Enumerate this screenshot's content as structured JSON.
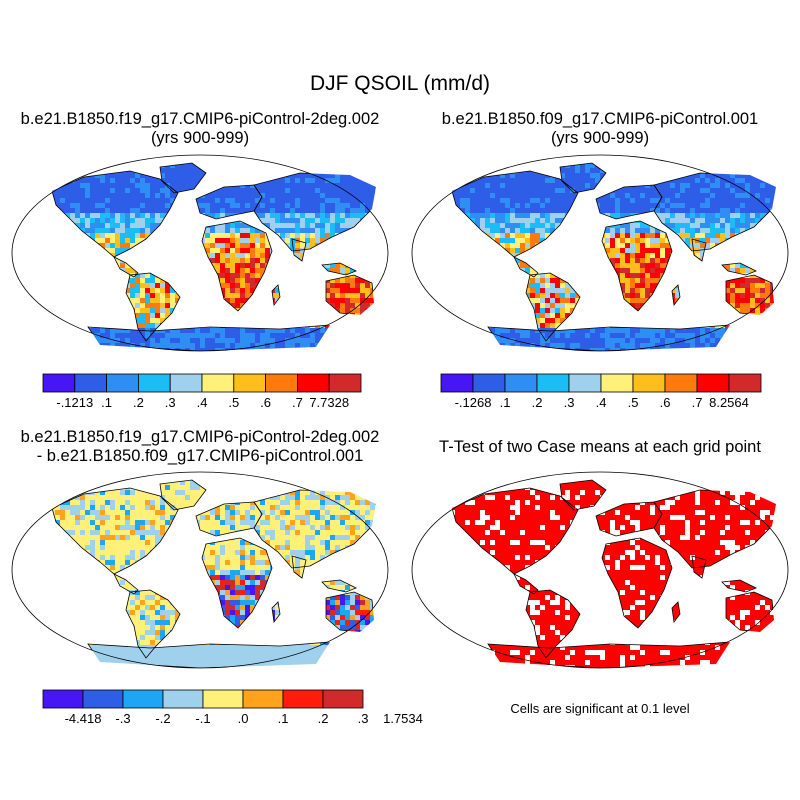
{
  "title": "DJF QSOIL (mm/d)",
  "colors": {
    "case_scale": [
      "#4716f4",
      "#2e5de8",
      "#2e8ef3",
      "#1cbcf6",
      "#9fd0ec",
      "#fff07a",
      "#ffbe1c",
      "#ff7a0c",
      "#ff0000",
      "#d22a2a"
    ],
    "diff_scale": [
      "#4716f4",
      "#2e5de8",
      "#1ea6f4",
      "#9fd0ec",
      "#fff07a",
      "#ffa21c",
      "#ff1c0c",
      "#d22a2a"
    ],
    "significance": "#ff0000",
    "land_outline": "#000000"
  },
  "panels": [
    {
      "id": "case1",
      "title_line1": "b.e21.B1850.f19_g17.CMIP6-piControl-2deg.002",
      "title_line2": "(yrs 900-999)",
      "colorbar_labels": [
        "-.1213",
        ".1",
        ".2",
        ".3",
        ".4",
        ".5",
        ".6",
        ".7",
        "7.7328"
      ],
      "dominant_regions": {
        "northern_high_latitudes": "low",
        "africa_south": "high",
        "australia": "high",
        "amazon": "high"
      }
    },
    {
      "id": "case2",
      "title_line1": "b.e21.B1850.f09_g17.CMIP6-piControl.001",
      "title_line2": "(yrs 900-999)",
      "colorbar_labels": [
        "-.1268",
        ".1",
        ".2",
        ".3",
        ".4",
        ".5",
        ".6",
        ".7",
        "8.2564"
      ],
      "dominant_regions": {
        "northern_high_latitudes": "low",
        "africa_south": "high",
        "australia": "high",
        "amazon": "high"
      }
    },
    {
      "id": "diff",
      "title_line1": "b.e21.B1850.f19_g17.CMIP6-piControl-2deg.002",
      "title_line2": "- b.e21.B1850.f09_g17.CMIP6-piControl.001",
      "colorbar_labels": [
        "-4.418",
        "-.3",
        "-.2",
        "-.1",
        ".0",
        ".1",
        ".2",
        ".3",
        "1.7534"
      ]
    },
    {
      "id": "ttest",
      "title_line1": "T-Test of two Case means at each grid point",
      "title_line2": "",
      "note": "Cells are significant at 0.1 level"
    }
  ],
  "chart_data": [
    {
      "type": "heatmap",
      "title": "b.e21.B1850.f19_g17.CMIP6-piControl-2deg.002 (yrs 900-999)",
      "projection": "global map",
      "colorbar_boundaries": [
        -0.1213,
        0.1,
        0.2,
        0.3,
        0.4,
        0.5,
        0.6,
        0.7,
        7.7328
      ]
    },
    {
      "type": "heatmap",
      "title": "b.e21.B1850.f09_g17.CMIP6-piControl.001 (yrs 900-999)",
      "projection": "global map",
      "colorbar_boundaries": [
        -0.1268,
        0.1,
        0.2,
        0.3,
        0.4,
        0.5,
        0.6,
        0.7,
        8.2564
      ]
    },
    {
      "type": "heatmap",
      "title": "b.e21.B1850.f19_g17.CMIP6-piControl-2deg.002 - b.e21.B1850.f09_g17.CMIP6-piControl.001",
      "projection": "global map",
      "colorbar_boundaries": [
        -4.418,
        -0.3,
        -0.2,
        -0.1,
        0.0,
        0.1,
        0.2,
        0.3,
        1.7534
      ]
    },
    {
      "type": "heatmap",
      "title": "T-Test of two Case means at each grid point",
      "projection": "global map",
      "significance_level": 0.1
    }
  ]
}
